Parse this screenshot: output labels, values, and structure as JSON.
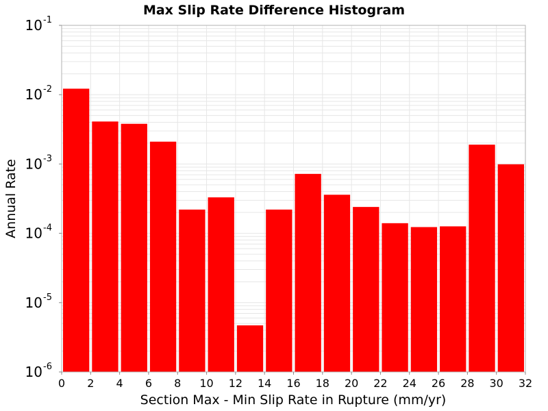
{
  "chart_data": {
    "type": "bar",
    "title": "Max Slip Rate Difference Histogram",
    "xlabel": "Section Max - Min Slip Rate in Rupture (mm/yr)",
    "ylabel": "Annual Rate",
    "xlim": [
      0,
      32
    ],
    "ylim": [
      1e-06,
      0.1
    ],
    "yscale": "log",
    "bin_width": 2,
    "x_ticks": [
      "0",
      "2",
      "4",
      "6",
      "8",
      "10",
      "12",
      "14",
      "16",
      "18",
      "20",
      "22",
      "24",
      "26",
      "28",
      "30",
      "32"
    ],
    "y_ticks": [
      {
        "base": "10",
        "exp": "-6",
        "value": 1e-06
      },
      {
        "base": "10",
        "exp": "-5",
        "value": 1e-05
      },
      {
        "base": "10",
        "exp": "-4",
        "value": 0.0001
      },
      {
        "base": "10",
        "exp": "-3",
        "value": 0.001
      },
      {
        "base": "10",
        "exp": "-2",
        "value": 0.01
      },
      {
        "base": "10",
        "exp": "-1",
        "value": 0.1
      }
    ],
    "bins": [
      {
        "x0": 0,
        "x1": 2,
        "value": 0.0122
      },
      {
        "x0": 2,
        "x1": 4,
        "value": 0.0041
      },
      {
        "x0": 4,
        "x1": 6,
        "value": 0.0038
      },
      {
        "x0": 6,
        "x1": 8,
        "value": 0.0021
      },
      {
        "x0": 8,
        "x1": 10,
        "value": 0.00022
      },
      {
        "x0": 10,
        "x1": 12,
        "value": 0.00033
      },
      {
        "x0": 12,
        "x1": 14,
        "value": 4.7e-06
      },
      {
        "x0": 14,
        "x1": 16,
        "value": 0.00022
      },
      {
        "x0": 16,
        "x1": 18,
        "value": 0.00072
      },
      {
        "x0": 18,
        "x1": 20,
        "value": 0.00036
      },
      {
        "x0": 20,
        "x1": 22,
        "value": 0.00024
      },
      {
        "x0": 22,
        "x1": 24,
        "value": 0.00014
      },
      {
        "x0": 24,
        "x1": 26,
        "value": 0.000123
      },
      {
        "x0": 26,
        "x1": 28,
        "value": 0.000126
      },
      {
        "x0": 28,
        "x1": 30,
        "value": 0.0019
      },
      {
        "x0": 30,
        "x1": 32,
        "value": 0.00099
      }
    ],
    "bar_color": "#ff0000",
    "grid": true,
    "grid_color": "#e6e6e6",
    "legend": "none"
  }
}
